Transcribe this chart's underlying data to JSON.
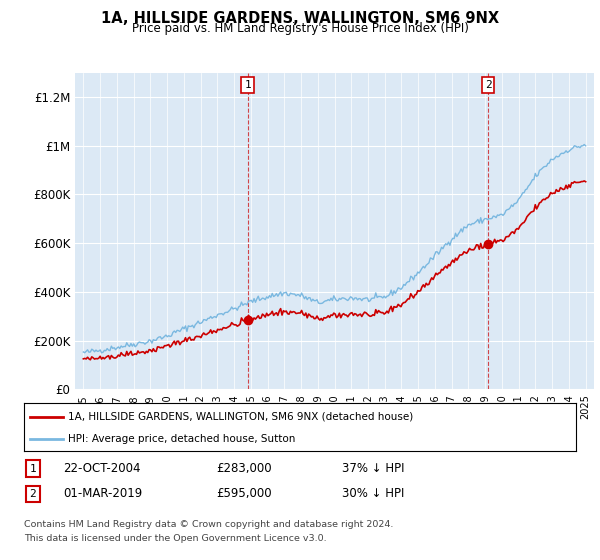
{
  "title": "1A, HILLSIDE GARDENS, WALLINGTON, SM6 9NX",
  "subtitle": "Price paid vs. HM Land Registry's House Price Index (HPI)",
  "ylabel_ticks": [
    "£0",
    "£200K",
    "£400K",
    "£600K",
    "£800K",
    "£1M",
    "£1.2M"
  ],
  "ytick_vals": [
    0,
    200000,
    400000,
    600000,
    800000,
    1000000,
    1200000
  ],
  "ylim": [
    0,
    1300000
  ],
  "xlim_start": 1994.5,
  "xlim_end": 2025.5,
  "hpi_color": "#7ab8e0",
  "price_color": "#cc0000",
  "bg_color": "#dce9f5",
  "sale1_year": 2004.81,
  "sale1_price": 283000,
  "sale2_year": 2019.17,
  "sale2_price": 595000,
  "legend_label1": "1A, HILLSIDE GARDENS, WALLINGTON, SM6 9NX (detached house)",
  "legend_label2": "HPI: Average price, detached house, Sutton",
  "footnote1": "Contains HM Land Registry data © Crown copyright and database right 2024.",
  "footnote2": "This data is licensed under the Open Government Licence v3.0.",
  "table_rows": [
    {
      "num": "1",
      "date": "22-OCT-2004",
      "price": "£283,000",
      "hpi": "37% ↓ HPI"
    },
    {
      "num": "2",
      "date": "01-MAR-2019",
      "price": "£595,000",
      "hpi": "30% ↓ HPI"
    }
  ]
}
